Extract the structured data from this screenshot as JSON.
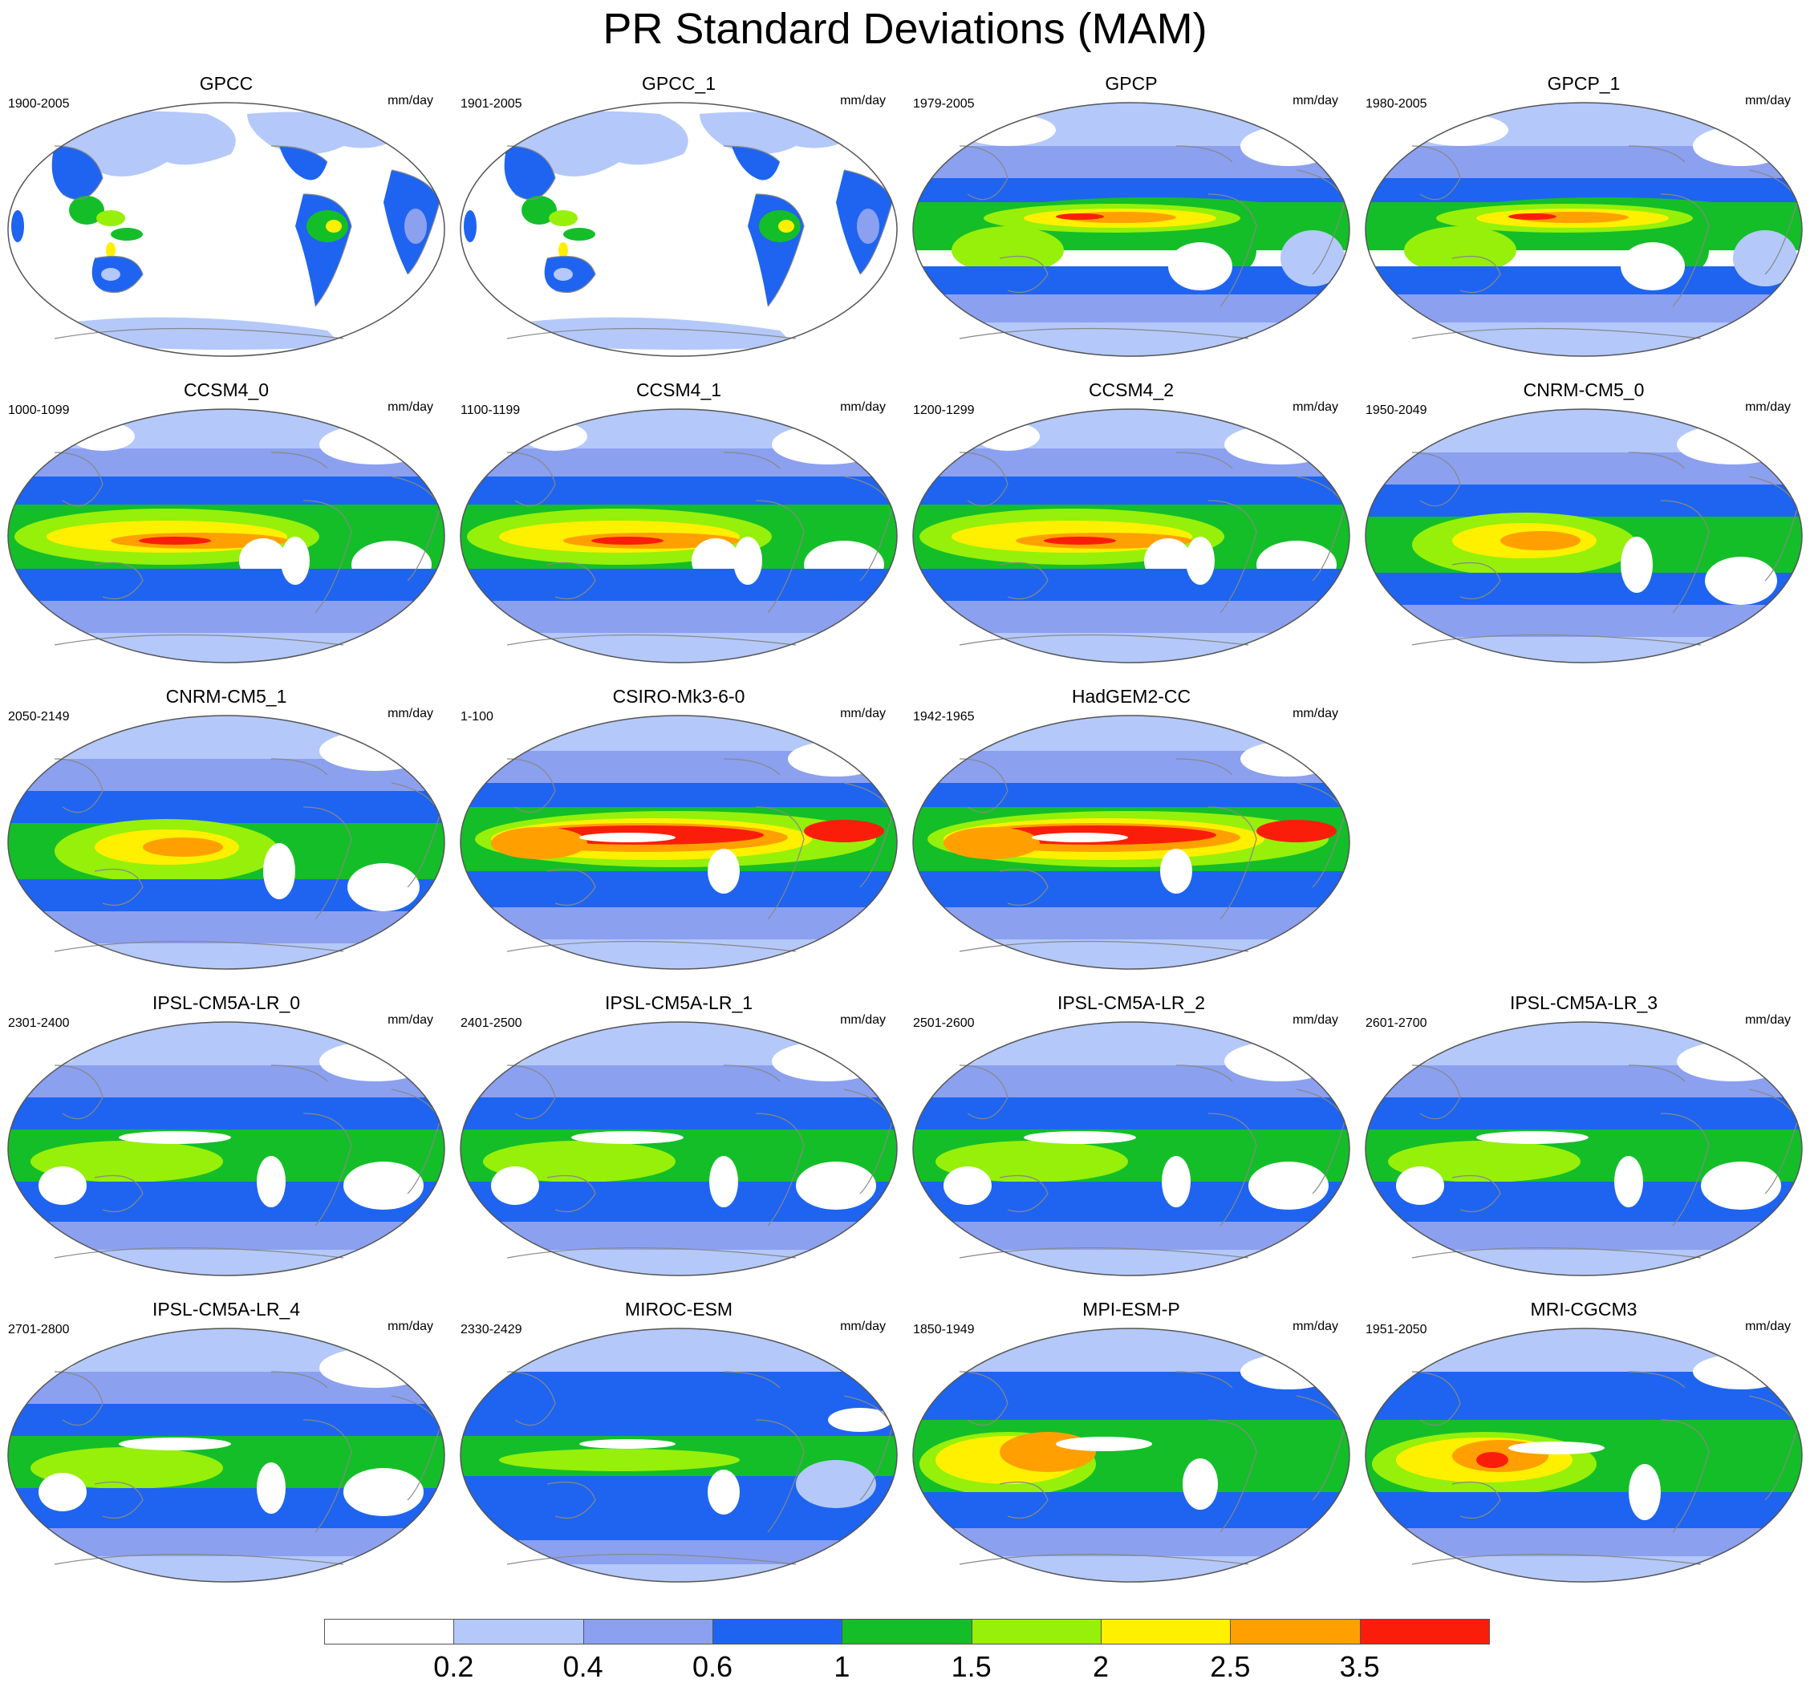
{
  "title": "PR Standard Deviations (MAM)",
  "units": "mm/day",
  "panels": [
    {
      "name": "GPCC",
      "years": "1900-2005",
      "pattern": "land"
    },
    {
      "name": "GPCC_1",
      "years": "1901-2005",
      "pattern": "land"
    },
    {
      "name": "GPCP",
      "years": "1979-2005",
      "pattern": "obs"
    },
    {
      "name": "GPCP_1",
      "years": "1980-2005",
      "pattern": "obs"
    },
    {
      "name": "CCSM4_0",
      "years": "1000-1099",
      "pattern": "ccsm"
    },
    {
      "name": "CCSM4_1",
      "years": "1100-1199",
      "pattern": "ccsm"
    },
    {
      "name": "CCSM4_2",
      "years": "1200-1299",
      "pattern": "ccsm"
    },
    {
      "name": "CNRM-CM5_0",
      "years": "1950-2049",
      "pattern": "cnrm"
    },
    {
      "name": "CNRM-CM5_1",
      "years": "2050-2149",
      "pattern": "cnrm"
    },
    {
      "name": "CSIRO-Mk3-6-0",
      "years": "1-100",
      "pattern": "strong"
    },
    {
      "name": "HadGEM2-CC",
      "years": "1942-1965",
      "pattern": "strong"
    },
    null,
    {
      "name": "IPSL-CM5A-LR_0",
      "years": "2301-2400",
      "pattern": "ipsl"
    },
    {
      "name": "IPSL-CM5A-LR_1",
      "years": "2401-2500",
      "pattern": "ipsl"
    },
    {
      "name": "IPSL-CM5A-LR_2",
      "years": "2501-2600",
      "pattern": "ipsl"
    },
    {
      "name": "IPSL-CM5A-LR_3",
      "years": "2601-2700",
      "pattern": "ipsl"
    },
    {
      "name": "IPSL-CM5A-LR_4",
      "years": "2701-2800",
      "pattern": "ipsl"
    },
    {
      "name": "MIROC-ESM",
      "years": "2330-2429",
      "pattern": "miroc"
    },
    {
      "name": "MPI-ESM-P",
      "years": "1850-1949",
      "pattern": "mpi"
    },
    {
      "name": "MRI-CGCM3",
      "years": "1951-2050",
      "pattern": "mri"
    }
  ],
  "colorbar": {
    "colors": [
      "#ffffff",
      "#b4c8fa",
      "#8ca0f0",
      "#1e64f0",
      "#14be28",
      "#96f00a",
      "#fff000",
      "#ffa000",
      "#fa1e0a"
    ],
    "labels": [
      "0.2",
      "0.4",
      "0.6",
      "1",
      "1.5",
      "2",
      "2.5",
      "3.5"
    ]
  }
}
